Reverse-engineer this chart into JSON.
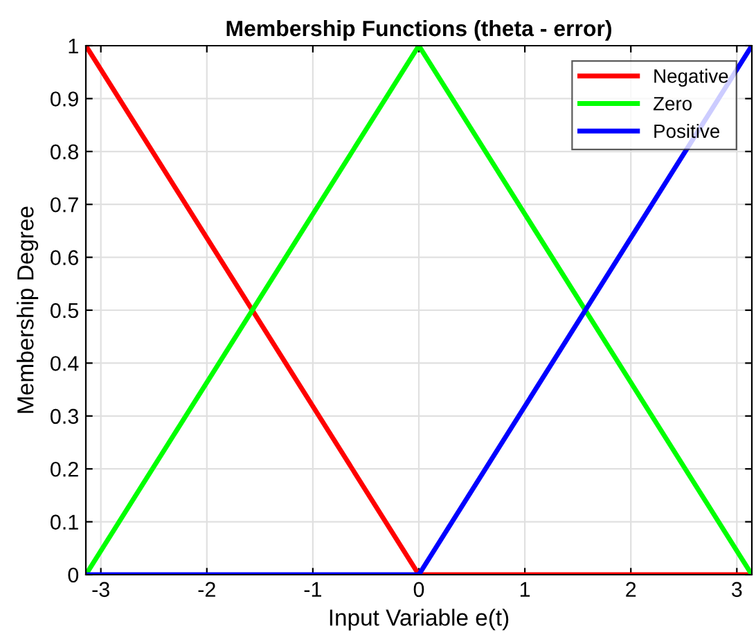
{
  "chart_data": {
    "type": "line",
    "title": "Membership Functions (theta - error)",
    "xlabel": "Input Variable e(t)",
    "ylabel": "Membership Degree",
    "x": [
      -3.1416,
      0,
      3.1416
    ],
    "series": [
      {
        "name": "Negative",
        "color": "#ff0000",
        "values": [
          1,
          0,
          0
        ]
      },
      {
        "name": "Zero",
        "color": "#00ff00",
        "values": [
          0,
          1,
          0
        ]
      },
      {
        "name": "Positive",
        "color": "#0000ff",
        "values": [
          0,
          0,
          1
        ]
      }
    ],
    "xlim": [
      -3.1416,
      3.1416
    ],
    "xticks": [
      -3,
      -2,
      -1,
      0,
      1,
      2,
      3
    ],
    "ylim": [
      0,
      1
    ],
    "yticks": [
      0,
      0.1,
      0.2,
      0.3,
      0.4,
      0.5,
      0.6,
      0.7,
      0.8,
      0.9,
      1
    ],
    "grid": true,
    "legend": "top right",
    "marker": "none",
    "line_style": "solid"
  }
}
